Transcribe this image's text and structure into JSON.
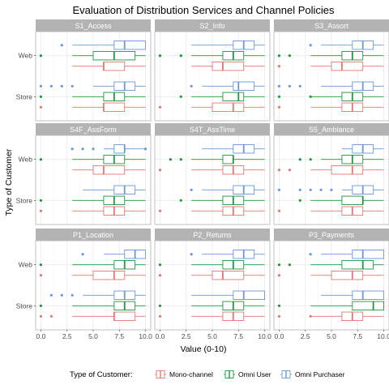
{
  "chart_data": {
    "type": "boxplot",
    "title": "Evaluation of Distribution Services and Channel Policies",
    "xlabel": "Value (0-10)",
    "ylabel": "Type of Customer",
    "xlim": [
      -0.5,
      10.5
    ],
    "x_ticks": [
      "0.0",
      "2.5",
      "5.0",
      "7.5",
      "10.0"
    ],
    "y_categories": [
      "Store",
      "Web"
    ],
    "legend": {
      "title": "Type of Customer:",
      "position": "bottom",
      "entries": [
        {
          "name": "Mono-channel",
          "color": "#e8756f"
        },
        {
          "name": "Omni User",
          "color": "#1a9a3a"
        },
        {
          "name": "Omni Purchaser",
          "color": "#6a96dc"
        }
      ]
    },
    "panels": [
      {
        "name": "S1_Access",
        "groups": {
          "Web": {
            "Mono-channel": {
              "min": 3,
              "q1": 6,
              "median": 6,
              "q3": 8,
              "max": 10,
              "outliers": []
            },
            "Omni User": {
              "min": 3,
              "q1": 5,
              "median": 7,
              "q3": 9,
              "max": 10,
              "outliers": [
                0
              ]
            },
            "Omni Purchaser": {
              "min": 3,
              "q1": 7,
              "median": 8,
              "q3": 10,
              "max": 10,
              "outliers": [
                2
              ]
            }
          },
          "Store": {
            "Mono-channel": {
              "min": 3,
              "q1": 6,
              "median": 6,
              "q3": 8,
              "max": 10,
              "outliers": [
                0
              ]
            },
            "Omni User": {
              "min": 3,
              "q1": 6,
              "median": 7,
              "q3": 8,
              "max": 10,
              "outliers": [
                0
              ]
            },
            "Omni Purchaser": {
              "min": 5,
              "q1": 7,
              "median": 8,
              "q3": 9,
              "max": 10,
              "outliers": [
                0,
                1,
                2,
                3
              ]
            }
          }
        }
      },
      {
        "name": "S2_Info",
        "groups": {
          "Web": {
            "Mono-channel": {
              "min": 3,
              "q1": 5,
              "median": 6,
              "q3": 8,
              "max": 10,
              "outliers": []
            },
            "Omni User": {
              "min": 3,
              "q1": 6,
              "median": 7,
              "q3": 8,
              "max": 10,
              "outliers": [
                0,
                2
              ]
            },
            "Omni Purchaser": {
              "min": 3,
              "q1": 7,
              "median": 8,
              "q3": 9,
              "max": 10,
              "outliers": []
            }
          },
          "Store": {
            "Mono-channel": {
              "min": 3,
              "q1": 5,
              "median": 7,
              "q3": 8,
              "max": 10,
              "outliers": [
                0
              ]
            },
            "Omni User": {
              "min": 3,
              "q1": 6,
              "median": 7.5,
              "q3": 8,
              "max": 10,
              "outliers": [
                2
              ]
            },
            "Omni Purchaser": {
              "min": 4,
              "q1": 7,
              "median": 7.5,
              "q3": 9,
              "max": 10,
              "outliers": [
                3
              ]
            }
          }
        }
      },
      {
        "name": "S3_Assort",
        "groups": {
          "Web": {
            "Mono-channel": {
              "min": 3,
              "q1": 5,
              "median": 6,
              "q3": 8,
              "max": 10,
              "outliers": [
                0
              ]
            },
            "Omni User": {
              "min": 3,
              "q1": 6,
              "median": 7,
              "q3": 8,
              "max": 10,
              "outliers": [
                0,
                1
              ]
            },
            "Omni Purchaser": {
              "min": 4,
              "q1": 7,
              "median": 8,
              "q3": 9,
              "max": 10,
              "outliers": [
                3
              ]
            }
          },
          "Store": {
            "Mono-channel": {
              "min": 3,
              "q1": 6,
              "median": 7,
              "q3": 8,
              "max": 10,
              "outliers": [
                0
              ]
            },
            "Omni User": {
              "min": 3,
              "q1": 6,
              "median": 7,
              "q3": 8,
              "max": 10,
              "outliers": [
                0,
                3
              ]
            },
            "Omni Purchaser": {
              "min": 4,
              "q1": 7,
              "median": 8,
              "q3": 9,
              "max": 10,
              "outliers": [
                0,
                1,
                2
              ]
            }
          }
        }
      },
      {
        "name": "S4F_AssForm",
        "groups": {
          "Web": {
            "Mono-channel": {
              "min": 3,
              "q1": 5,
              "median": 6,
              "q3": 8,
              "max": 10,
              "outliers": []
            },
            "Omni User": {
              "min": 3,
              "q1": 6,
              "median": 7,
              "q3": 8,
              "max": 10,
              "outliers": [
                0
              ]
            },
            "Omni Purchaser": {
              "min": 6,
              "q1": 7,
              "median": 8,
              "q3": 8,
              "max": 10,
              "outliers": [
                3,
                4,
                5,
                10
              ]
            }
          },
          "Store": {
            "Mono-channel": {
              "min": 3,
              "q1": 6,
              "median": 7,
              "q3": 8,
              "max": 10,
              "outliers": [
                0
              ]
            },
            "Omni User": {
              "min": 3,
              "q1": 6,
              "median": 7,
              "q3": 8,
              "max": 10,
              "outliers": [
                0
              ]
            },
            "Omni Purchaser": {
              "min": 4,
              "q1": 7,
              "median": 8,
              "q3": 9,
              "max": 10,
              "outliers": []
            }
          }
        }
      },
      {
        "name": "S4T_AssTime",
        "groups": {
          "Web": {
            "Mono-channel": {
              "min": 3,
              "q1": 6,
              "median": 7,
              "q3": 8,
              "max": 10,
              "outliers": [
                0
              ]
            },
            "Omni User": {
              "min": 3,
              "q1": 6,
              "median": 7,
              "q3": 7,
              "max": 10,
              "outliers": [
                1,
                2
              ]
            },
            "Omni Purchaser": {
              "min": 4,
              "q1": 7,
              "median": 8,
              "q3": 9,
              "max": 10,
              "outliers": []
            }
          },
          "Store": {
            "Mono-channel": {
              "min": 3,
              "q1": 6,
              "median": 7,
              "q3": 8,
              "max": 10,
              "outliers": [
                0
              ]
            },
            "Omni User": {
              "min": 3,
              "q1": 6,
              "median": 7,
              "q3": 8,
              "max": 10,
              "outliers": [
                2
              ]
            },
            "Omni Purchaser": {
              "min": 4,
              "q1": 7,
              "median": 8,
              "q3": 9,
              "max": 10,
              "outliers": [
                3
              ]
            }
          }
        }
      },
      {
        "name": "S5_Ambiance",
        "groups": {
          "Web": {
            "Mono-channel": {
              "min": 3,
              "q1": 5,
              "median": 7,
              "q3": 8,
              "max": 10,
              "outliers": [
                0,
                1
              ]
            },
            "Omni User": {
              "min": 4,
              "q1": 6,
              "median": 7,
              "q3": 8,
              "max": 10,
              "outliers": [
                2,
                3
              ]
            },
            "Omni Purchaser": {
              "min": 6,
              "q1": 7,
              "median": 8,
              "q3": 9,
              "max": 10,
              "outliers": []
            }
          },
          "Store": {
            "Mono-channel": {
              "min": 3,
              "q1": 6,
              "median": 7,
              "q3": 8,
              "max": 10,
              "outliers": [
                0
              ]
            },
            "Omni User": {
              "min": 3,
              "q1": 6,
              "median": 8,
              "q3": 8,
              "max": 10,
              "outliers": [
                2
              ]
            },
            "Omni Purchaser": {
              "min": 6,
              "q1": 7,
              "median": 8,
              "q3": 9,
              "max": 10,
              "outliers": [
                0,
                2,
                3,
                4,
                5
              ]
            }
          }
        }
      },
      {
        "name": "P1_Location",
        "groups": {
          "Web": {
            "Mono-channel": {
              "min": 3,
              "q1": 5,
              "median": 7,
              "q3": 8,
              "max": 10,
              "outliers": [
                0
              ]
            },
            "Omni User": {
              "min": 3,
              "q1": 7,
              "median": 8,
              "q3": 9,
              "max": 10,
              "outliers": [
                0
              ]
            },
            "Omni Purchaser": {
              "min": 6,
              "q1": 8,
              "median": 9,
              "q3": 10,
              "max": 10,
              "outliers": [
                4
              ]
            }
          },
          "Store": {
            "Mono-channel": {
              "min": 3,
              "q1": 7,
              "median": 7,
              "q3": 9,
              "max": 10,
              "outliers": [
                0,
                1
              ]
            },
            "Omni User": {
              "min": 3,
              "q1": 7,
              "median": 8,
              "q3": 9,
              "max": 10,
              "outliers": [
                0
              ]
            },
            "Omni Purchaser": {
              "min": 4,
              "q1": 7,
              "median": 8,
              "q3": 9,
              "max": 10,
              "outliers": [
                1,
                2,
                3
              ]
            }
          }
        }
      },
      {
        "name": "P2_Returns",
        "groups": {
          "Web": {
            "Mono-channel": {
              "min": 3,
              "q1": 5,
              "median": 6,
              "q3": 8,
              "max": 10,
              "outliers": [
                0
              ]
            },
            "Omni User": {
              "min": 3,
              "q1": 6,
              "median": 7,
              "q3": 8,
              "max": 10,
              "outliers": [
                0
              ]
            },
            "Omni Purchaser": {
              "min": 4,
              "q1": 7,
              "median": 8,
              "q3": 9,
              "max": 10,
              "outliers": [
                3
              ]
            }
          },
          "Store": {
            "Mono-channel": {
              "min": 3,
              "q1": 6,
              "median": 7,
              "q3": 8,
              "max": 10,
              "outliers": [
                0
              ]
            },
            "Omni User": {
              "min": 3,
              "q1": 6,
              "median": 7,
              "q3": 8,
              "max": 10,
              "outliers": [
                0
              ]
            },
            "Omni Purchaser": {
              "min": 3,
              "q1": 7,
              "median": 8,
              "q3": 10,
              "max": 10,
              "outliers": []
            }
          }
        }
      },
      {
        "name": "P3_Payments",
        "groups": {
          "Web": {
            "Mono-channel": {
              "min": 3,
              "q1": 5,
              "median": 7,
              "q3": 8,
              "max": 10,
              "outliers": [
                0
              ]
            },
            "Omni User": {
              "min": 3,
              "q1": 6,
              "median": 8,
              "q3": 9,
              "max": 10,
              "outliers": [
                0,
                1
              ]
            },
            "Omni Purchaser": {
              "min": 4,
              "q1": 7,
              "median": 8,
              "q3": 10,
              "max": 10,
              "outliers": [
                3
              ]
            }
          },
          "Store": {
            "Mono-channel": {
              "min": 3,
              "q1": 6,
              "median": 7,
              "q3": 8,
              "max": 10,
              "outliers": [
                0,
                3
              ]
            },
            "Omni User": {
              "min": 3,
              "q1": 7,
              "median": 9,
              "q3": 10,
              "max": 10,
              "outliers": [
                0
              ]
            },
            "Omni Purchaser": {
              "min": 4,
              "q1": 7,
              "median": 8,
              "q3": 10,
              "max": 10,
              "outliers": []
            }
          }
        }
      }
    ]
  }
}
